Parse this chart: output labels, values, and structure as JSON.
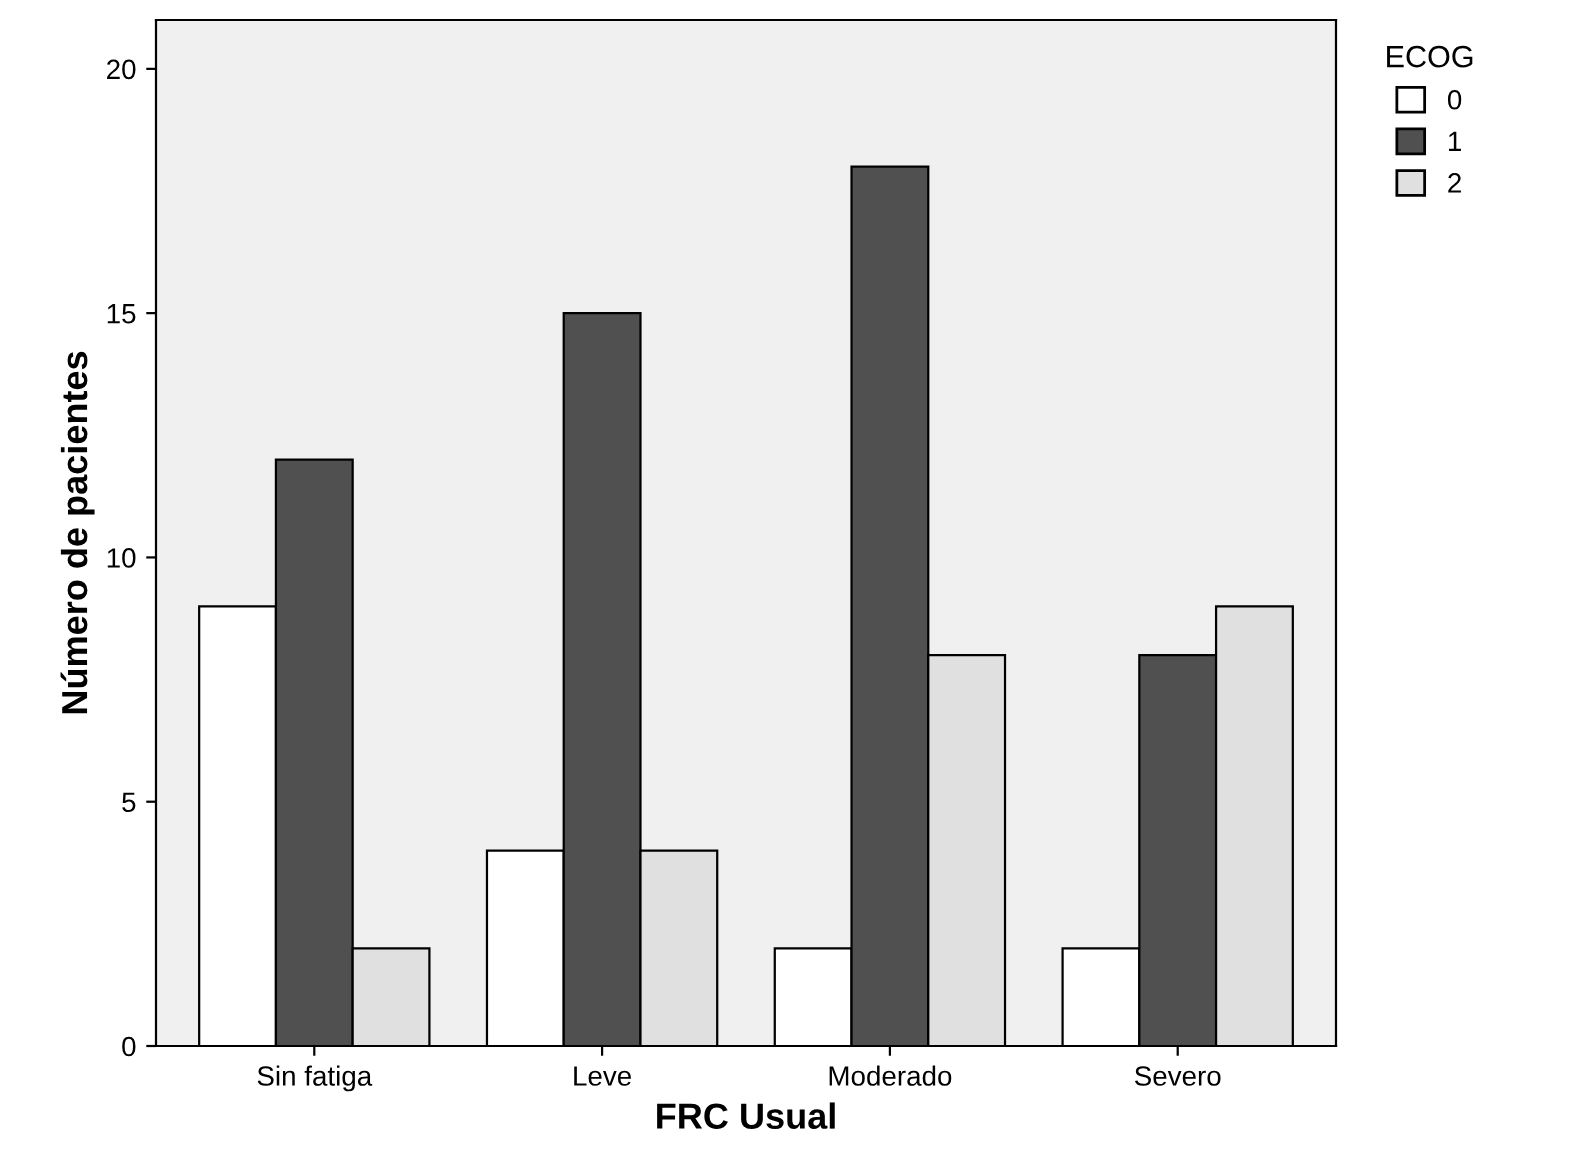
{
  "chart_data": {
    "type": "bar",
    "xlabel": "FRC Usual",
    "ylabel": "Número de pacientes",
    "legend_title": "ECOG",
    "categories": [
      "Sin fatiga",
      "Leve",
      "Moderado",
      "Severo"
    ],
    "series": [
      {
        "name": "0",
        "color": "#ffffff",
        "values": [
          9,
          4,
          2,
          2
        ]
      },
      {
        "name": "1",
        "color": "#505050",
        "values": [
          12,
          15,
          18,
          8
        ]
      },
      {
        "name": "2",
        "color": "#e0e0e0",
        "values": [
          2,
          4,
          8,
          9
        ]
      }
    ],
    "ylim": [
      0,
      21
    ],
    "yticks": [
      0,
      5,
      10,
      15,
      20
    ],
    "grid": false,
    "legend": "top right"
  }
}
